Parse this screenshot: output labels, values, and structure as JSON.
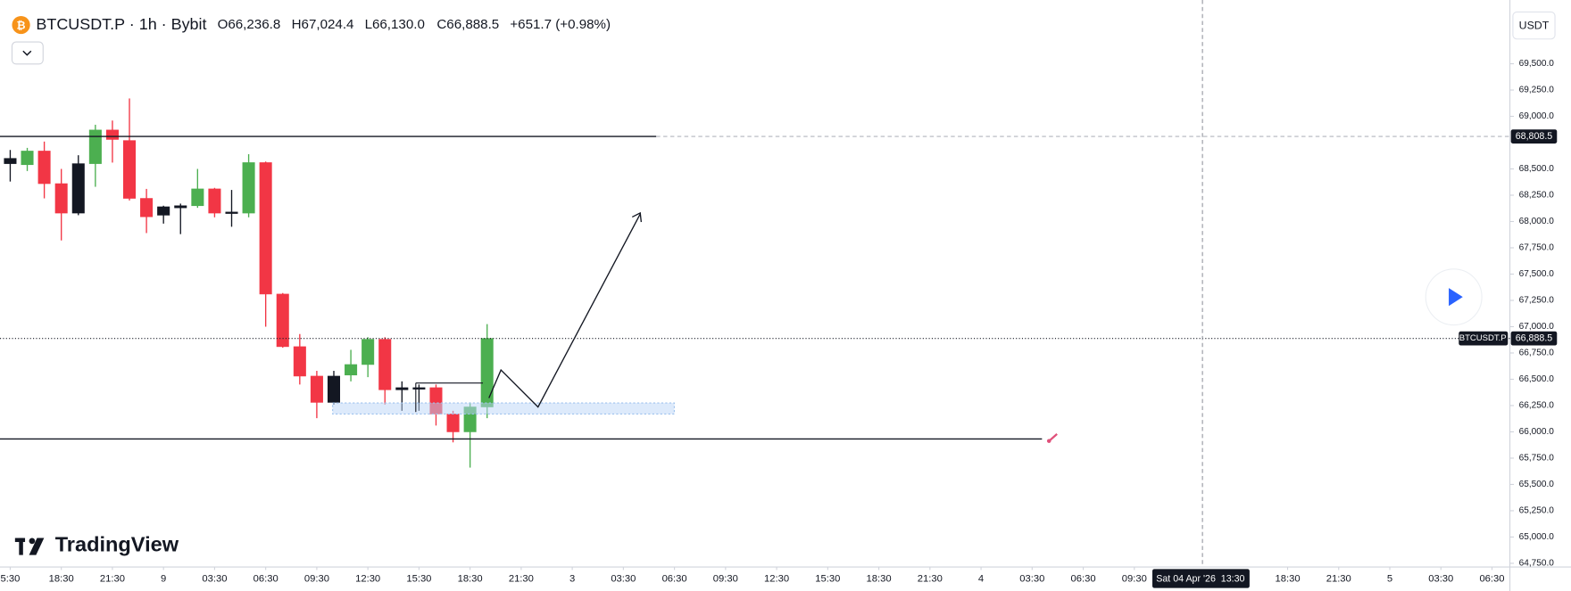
{
  "chart_data": {
    "type": "candlestick",
    "symbol": "BTCUSDT.P · 1h · Bybit",
    "ohlc_header": [
      "O66,236.8",
      "H67,024.4",
      "L66,130.0",
      "C66,888.5",
      "+651.7 (+0.98%)"
    ],
    "currency": "USDT",
    "watermark": "TradingView",
    "x": [
      0,
      1,
      2,
      3,
      4,
      5,
      6,
      7,
      8,
      9,
      10,
      11,
      12,
      13,
      14,
      15,
      16,
      17,
      18,
      19,
      20,
      21,
      22,
      23,
      24,
      25,
      26,
      27,
      28
    ],
    "open": [
      68600,
      68540,
      68670,
      68360,
      68080,
      68550,
      68870,
      68770,
      68220,
      68060,
      68130,
      68150,
      68310,
      68080,
      68080,
      68560,
      67310,
      66810,
      66530,
      66280,
      66540,
      66640,
      66880,
      66400,
      66420,
      66420,
      66170,
      66000,
      66236.8
    ],
    "high": [
      68680,
      68700,
      68760,
      68500,
      68630,
      68920,
      68960,
      69170,
      68310,
      68150,
      68170,
      68500,
      68320,
      68300,
      68640,
      68570,
      67320,
      66930,
      66580,
      66580,
      66780,
      66900,
      66900,
      66480,
      66450,
      66450,
      66200,
      66280,
      67024.4
    ],
    "low": [
      68380,
      68480,
      68220,
      67820,
      68060,
      68330,
      68560,
      68200,
      67890,
      67980,
      67880,
      68130,
      68040,
      67950,
      68040,
      67000,
      66800,
      66450,
      66130,
      66260,
      66480,
      66520,
      66260,
      66200,
      66200,
      66060,
      65900,
      65660,
      66130
    ],
    "close": [
      68550,
      68670,
      68360,
      68080,
      68550,
      68870,
      68780,
      68220,
      68045,
      68140,
      68150,
      68310,
      68080,
      68090,
      68560,
      67310,
      66810,
      66530,
      66280,
      66530,
      66640,
      66880,
      66400,
      66420,
      66410,
      66170,
      66000,
      66236.8,
      66888.5
    ],
    "candle_colors": [
      "#131722",
      "#4caf50",
      "#f23645",
      "#f23645",
      "#131722",
      "#4caf50",
      "#f23645",
      "#f23645",
      "#f23645",
      "#131722",
      "#131722",
      "#4caf50",
      "#f23645",
      "#131722",
      "#4caf50",
      "#f23645",
      "#f23645",
      "#f23645",
      "#f23645",
      "#131722",
      "#4caf50",
      "#4caf50",
      "#f23645",
      "#131722",
      "#131722",
      "#f23645",
      "#f23645",
      "#4caf50",
      "#4caf50"
    ],
    "xlim": [
      -0.6,
      88.05
    ],
    "ylim": [
      64715,
      70030
    ],
    "xticks": [
      {
        "value": 0,
        "label": "5:30"
      },
      {
        "value": 3,
        "label": "18:30"
      },
      {
        "value": 6,
        "label": "21:30"
      },
      9,
      {
        "value": 12,
        "label": "03:30"
      },
      {
        "value": 15,
        "label": "06:30"
      },
      {
        "value": 18,
        "label": "09:30"
      },
      {
        "value": 21,
        "label": "12:30"
      },
      {
        "value": 24,
        "label": "15:30"
      },
      {
        "value": 27,
        "label": "18:30"
      },
      {
        "value": 30,
        "label": "21:30"
      },
      {
        "value": 33,
        "label": "3"
      },
      {
        "value": 36,
        "label": "03:30"
      },
      {
        "value": 39,
        "label": "06:30"
      },
      {
        "value": 42,
        "label": "09:30"
      },
      {
        "value": 45,
        "label": "12:30"
      },
      {
        "value": 48,
        "label": "15:30"
      },
      {
        "value": 51,
        "label": "18:30"
      },
      {
        "value": 54,
        "label": "21:30"
      },
      {
        "value": 57,
        "label": "4"
      },
      {
        "value": 60,
        "label": "03:30"
      },
      {
        "value": 63,
        "label": "06:30"
      },
      {
        "value": 66,
        "label": "09:30"
      },
      {
        "value": 75,
        "label": "18:30"
      },
      {
        "value": 78,
        "label": "21:30"
      },
      {
        "value": 81,
        "label": "5"
      },
      {
        "value": 84,
        "label": "03:30"
      },
      {
        "value": 87,
        "label": "06:30"
      }
    ],
    "yticks": [
      {
        "value": 64750,
        "label": "64,750.0"
      },
      {
        "value": 65000,
        "label": "65,000.0"
      },
      {
        "value": 65250,
        "label": "65,250.0"
      },
      {
        "value": 65500,
        "label": "65,500.0"
      },
      {
        "value": 65750,
        "label": "65,750.0"
      },
      {
        "value": 66000,
        "label": "66,000.0"
      },
      {
        "value": 66250,
        "label": "66,250.0"
      },
      {
        "value": 66500,
        "label": "66,500.0"
      },
      {
        "value": 66750,
        "label": "66,750.0"
      },
      {
        "value": 67000,
        "label": "67,000.0"
      },
      {
        "value": 67250,
        "label": "67,250.0"
      },
      {
        "value": 67500,
        "label": "67,500.0"
      },
      {
        "value": 67750,
        "label": "67,750.0"
      },
      {
        "value": 68000,
        "label": "68,000.0"
      },
      {
        "value": 68250,
        "label": "68,250.0"
      },
      {
        "value": 68500,
        "label": "68,500.0"
      },
      {
        "value": 69000,
        "label": "69,000.0"
      },
      {
        "value": 69250,
        "label": "69,250.0"
      },
      {
        "value": 69500,
        "label": "69,500.0"
      }
    ],
    "price_lines": [
      {
        "value": 68808.5,
        "label": "68,808.5"
      }
    ],
    "last_price": {
      "value": 66888.5,
      "label": "66,888.5"
    },
    "last_price_symbol": "BTCUSDT.P",
    "crosshair": {
      "x": 70,
      "label": "Sat 04 Apr '26  13:30"
    }
  }
}
